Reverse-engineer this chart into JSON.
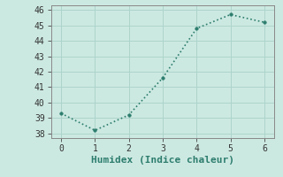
{
  "x": [
    0,
    1,
    2,
    3,
    4,
    5,
    6
  ],
  "y": [
    39.3,
    38.2,
    39.2,
    41.6,
    44.8,
    45.7,
    45.2
  ],
  "line_color": "#2d7d6e",
  "marker": "o",
  "marker_size": 2.5,
  "line_style": ":",
  "line_width": 1.2,
  "background_color": "#cce9e1",
  "grid_color": "#add4cb",
  "xlabel": "Humidex (Indice chaleur)",
  "xlabel_fontsize": 8,
  "xlim": [
    -0.3,
    6.3
  ],
  "ylim": [
    37.7,
    46.3
  ],
  "yticks": [
    38,
    39,
    40,
    41,
    42,
    43,
    44,
    45,
    46
  ],
  "xticks": [
    0,
    1,
    2,
    3,
    4,
    5,
    6
  ],
  "tick_fontsize": 7,
  "spine_color": "#888888"
}
